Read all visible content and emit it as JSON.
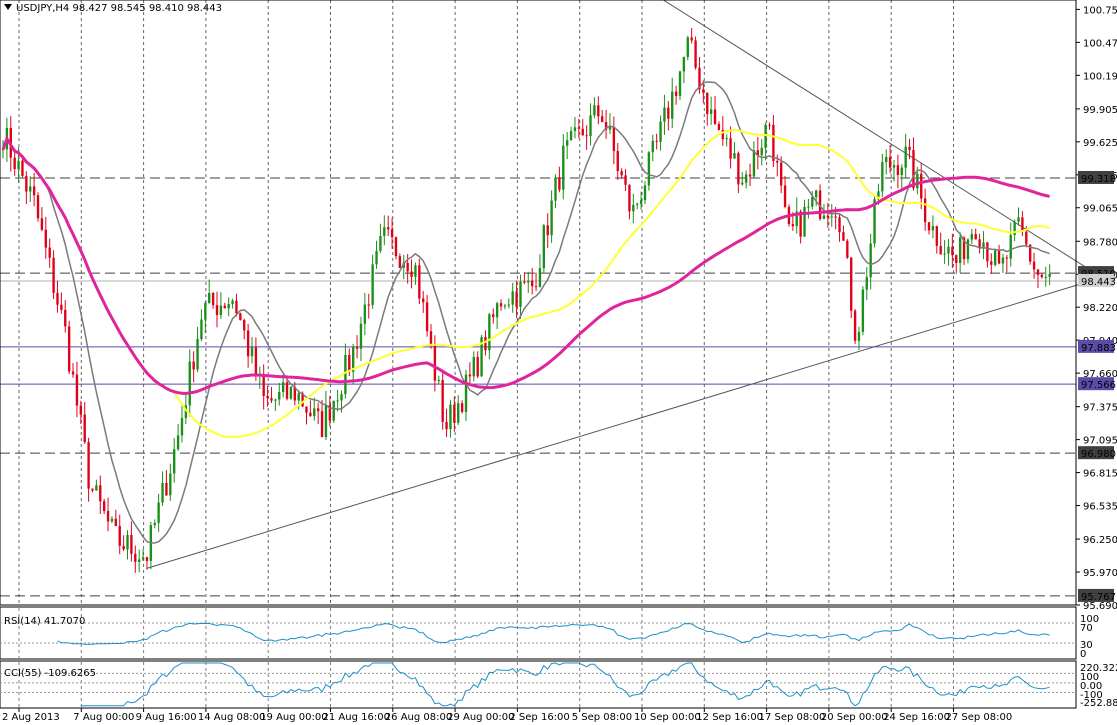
{
  "window": {
    "symbol_header": "USDJPY,H4  98.427 98.545 98.410 98.443"
  },
  "colors": {
    "background": "#ffffff",
    "grid": "#000000",
    "bull": "#1a8f1a",
    "bear": "#e0001a",
    "ma_fast": "#7a7a7a",
    "ma_mid": "#ffff33",
    "ma_slow": "#e0249b",
    "hline_dark": "#404040",
    "hline_purple": "#5a4ca8",
    "price_box": "#404040",
    "current_box": "#d0d0d0",
    "rsi_line": "#1e90c8",
    "cci_line": "#1e90c8"
  },
  "chart_data": {
    "type": "candlestick",
    "symbol": "USDJPY",
    "timeframe": "H4",
    "ohlc_header": {
      "open": 98.427,
      "high": 98.545,
      "low": 98.41,
      "close": 98.443
    },
    "ylim": [
      95.69,
      100.83
    ],
    "y_ticks": [
      100.75,
      100.47,
      100.19,
      99.905,
      99.625,
      99.345,
      99.065,
      98.78,
      98.5,
      98.22,
      97.94,
      97.66,
      97.375,
      97.095,
      96.815,
      96.535,
      96.25,
      95.97,
      95.69
    ],
    "y_tick_labels": [
      "100.750",
      "100.470",
      "100.190",
      "99.905",
      "99.625",
      "99.345",
      "99.065",
      "98.780",
      "98.500",
      "98.220",
      "97.940",
      "97.660",
      "97.375",
      "97.095",
      "96.815",
      "96.535",
      "96.250",
      "95.970",
      "95.690"
    ],
    "x_tick_labels": [
      "2 Aug 2013",
      "7 Aug 00:00",
      "9 Aug 16:00",
      "14 Aug 08:00",
      "19 Aug 00:00",
      "21 Aug 16:00",
      "26 Aug 08:00",
      "29 Aug 00:00",
      "2 Sep 16:00",
      "5 Sep 08:00",
      "10 Sep 00:00",
      "12 Sep 16:00",
      "17 Sep 08:00",
      "20 Sep 00:00",
      "24 Sep 16:00",
      "27 Sep 08:00"
    ],
    "price_levels": [
      {
        "value": 99.318,
        "label": "99.318",
        "kind": "dashed"
      },
      {
        "value": 98.51,
        "label": "98.510",
        "kind": "dashed"
      },
      {
        "value": 98.443,
        "label": "98.443",
        "kind": "current"
      },
      {
        "value": 97.883,
        "label": "97.883",
        "kind": "purple"
      },
      {
        "value": 97.566,
        "label": "97.566",
        "kind": "purple"
      },
      {
        "value": 96.98,
        "label": "96.980",
        "kind": "dashed"
      },
      {
        "value": 95.767,
        "label": "95.767",
        "kind": "dashed"
      }
    ],
    "trendlines": [
      {
        "from": [
          10.6,
          100.83
        ],
        "to": [
          17.5,
          98.52
        ]
      },
      {
        "from": [
          2.3,
          96.0
        ],
        "to": [
          17.5,
          98.45
        ]
      }
    ],
    "key_prices": [
      {
        "x": 0.0,
        "y": 99.7
      },
      {
        "x": 0.5,
        "y": 99.1
      },
      {
        "x": 1.0,
        "y": 98.0
      },
      {
        "x": 1.4,
        "y": 96.7
      },
      {
        "x": 1.8,
        "y": 96.25
      },
      {
        "x": 2.3,
        "y": 96.1
      },
      {
        "x": 2.8,
        "y": 97.1
      },
      {
        "x": 3.2,
        "y": 98.2
      },
      {
        "x": 3.7,
        "y": 98.3
      },
      {
        "x": 4.2,
        "y": 97.4
      },
      {
        "x": 4.7,
        "y": 97.5
      },
      {
        "x": 5.1,
        "y": 97.2
      },
      {
        "x": 5.6,
        "y": 97.8
      },
      {
        "x": 6.1,
        "y": 98.8
      },
      {
        "x": 6.6,
        "y": 98.6
      },
      {
        "x": 7.1,
        "y": 97.2
      },
      {
        "x": 7.5,
        "y": 97.6
      },
      {
        "x": 8.0,
        "y": 98.3
      },
      {
        "x": 8.5,
        "y": 98.4
      },
      {
        "x": 9.0,
        "y": 99.5
      },
      {
        "x": 9.6,
        "y": 99.9
      },
      {
        "x": 10.1,
        "y": 99.0
      },
      {
        "x": 10.5,
        "y": 99.6
      },
      {
        "x": 11.0,
        "y": 100.45
      },
      {
        "x": 11.4,
        "y": 99.8
      },
      {
        "x": 11.9,
        "y": 99.3
      },
      {
        "x": 12.3,
        "y": 99.8
      },
      {
        "x": 12.6,
        "y": 98.8
      },
      {
        "x": 13.0,
        "y": 99.1
      },
      {
        "x": 13.4,
        "y": 99.1
      },
      {
        "x": 13.7,
        "y": 97.95
      },
      {
        "x": 14.1,
        "y": 99.4
      },
      {
        "x": 14.5,
        "y": 99.5
      },
      {
        "x": 14.9,
        "y": 98.9
      },
      {
        "x": 15.3,
        "y": 98.6
      },
      {
        "x": 15.6,
        "y": 98.95
      },
      {
        "x": 16.0,
        "y": 98.5
      },
      {
        "x": 16.3,
        "y": 98.9
      },
      {
        "x": 16.6,
        "y": 98.5
      },
      {
        "x": 16.8,
        "y": 98.44
      }
    ],
    "indicators": {
      "rsi": {
        "label": "RSI(14) 41.7070",
        "levels": [
          "100",
          "70",
          "30",
          "0"
        ]
      },
      "cci": {
        "label": "CCI(55) -109.6265",
        "levels": [
          "220.3222",
          "100",
          "0.00",
          "-100",
          "-252.8879"
        ]
      }
    }
  }
}
